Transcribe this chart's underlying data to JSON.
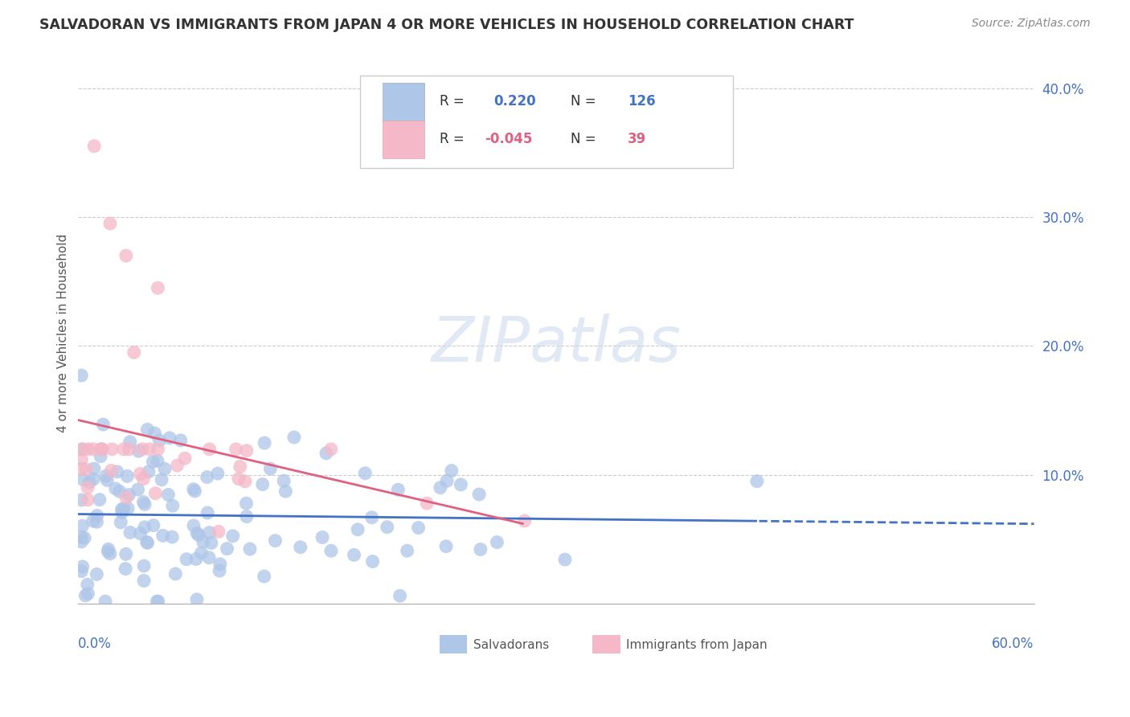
{
  "title": "SALVADORAN VS IMMIGRANTS FROM JAPAN 4 OR MORE VEHICLES IN HOUSEHOLD CORRELATION CHART",
  "source": "Source: ZipAtlas.com",
  "ylabel": "4 or more Vehicles in Household",
  "xlim": [
    0.0,
    0.6
  ],
  "ylim": [
    0.0,
    0.42
  ],
  "legend": {
    "blue_R": "0.220",
    "blue_N": "126",
    "pink_R": "-0.045",
    "pink_N": "39"
  },
  "blue_color": "#aec6e8",
  "pink_color": "#f4b8c8",
  "blue_line_color": "#4472c4",
  "pink_line_color": "#e06080",
  "watermark": "ZIPatlas",
  "blue_R": 0.22,
  "blue_N": 126,
  "pink_R": -0.045,
  "pink_N": 39,
  "blue_seed": 12,
  "pink_seed": 99
}
